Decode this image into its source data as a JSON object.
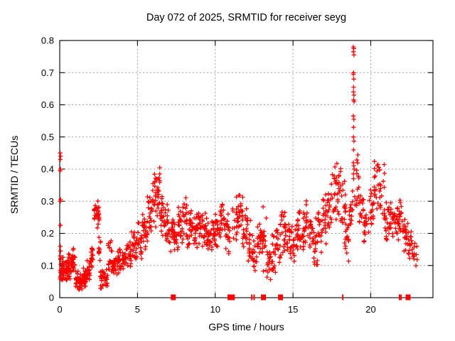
{
  "chart_data": {
    "type": "scatter",
    "title": "Day 072 of 2025, SRMTID for receiver seyg",
    "xlabel": "GPS time / hours",
    "ylabel": "SRMTID / TECUs",
    "series_name": "SRMTID",
    "xlim": [
      0,
      24
    ],
    "ylim": [
      0,
      0.8
    ],
    "xticks": [
      {
        "v": 0,
        "label": "0"
      },
      {
        "v": 5,
        "label": "5"
      },
      {
        "v": 10,
        "label": "10"
      },
      {
        "v": 15,
        "label": "15"
      },
      {
        "v": 20,
        "label": "20"
      }
    ],
    "yticks": [
      {
        "v": 0,
        "label": "0"
      },
      {
        "v": 0.1,
        "label": "0.1"
      },
      {
        "v": 0.2,
        "label": "0.2"
      },
      {
        "v": 0.3,
        "label": "0.3"
      },
      {
        "v": 0.4,
        "label": "0.4"
      },
      {
        "v": 0.5,
        "label": "0.5"
      },
      {
        "v": 0.6,
        "label": "0.6"
      },
      {
        "v": 0.7,
        "label": "0.7"
      },
      {
        "v": 0.8,
        "label": "0.8"
      }
    ],
    "grid": true,
    "legend_visible": false,
    "marker": "plus",
    "marker_color": "#ff0000",
    "grid_color": "#9e9e9e",
    "border_color": "#000000",
    "seed": 72,
    "density_bins": [
      [
        0.02,
        0.25,
        0.04,
        0.13,
        26
      ],
      [
        0.25,
        0.5,
        0.04,
        0.12,
        24
      ],
      [
        0.5,
        0.75,
        0.05,
        0.14,
        24
      ],
      [
        0.75,
        1.0,
        0.06,
        0.16,
        22
      ],
      [
        1.0,
        1.25,
        0.02,
        0.09,
        26
      ],
      [
        1.25,
        1.5,
        0.015,
        0.08,
        26
      ],
      [
        1.5,
        1.75,
        0.03,
        0.1,
        24
      ],
      [
        1.75,
        2.0,
        0.05,
        0.12,
        22
      ],
      [
        2.0,
        2.2,
        0.08,
        0.18,
        14
      ],
      [
        2.2,
        2.55,
        0.2,
        0.31,
        32
      ],
      [
        2.45,
        2.65,
        0.1,
        0.22,
        10
      ],
      [
        2.6,
        3.1,
        0.025,
        0.09,
        36
      ],
      [
        3.1,
        3.4,
        0.05,
        0.2,
        20
      ],
      [
        3.4,
        3.7,
        0.06,
        0.15,
        22
      ],
      [
        3.7,
        4.0,
        0.07,
        0.16,
        22
      ],
      [
        4.0,
        4.3,
        0.08,
        0.17,
        20
      ],
      [
        4.3,
        4.6,
        0.09,
        0.19,
        20
      ],
      [
        4.6,
        5.0,
        0.11,
        0.21,
        24
      ],
      [
        5.0,
        5.3,
        0.12,
        0.24,
        20
      ],
      [
        5.3,
        5.6,
        0.14,
        0.28,
        20
      ],
      [
        5.6,
        5.9,
        0.17,
        0.33,
        22
      ],
      [
        5.9,
        6.2,
        0.2,
        0.4,
        22
      ],
      [
        6.2,
        6.45,
        0.24,
        0.42,
        20
      ],
      [
        6.45,
        6.7,
        0.19,
        0.36,
        18
      ],
      [
        6.7,
        7.0,
        0.16,
        0.3,
        20
      ],
      [
        7.0,
        7.3,
        0.14,
        0.27,
        20
      ],
      [
        7.3,
        7.6,
        0.13,
        0.25,
        20
      ],
      [
        7.6,
        7.9,
        0.14,
        0.3,
        20
      ],
      [
        7.9,
        8.2,
        0.16,
        0.34,
        20
      ],
      [
        8.2,
        8.5,
        0.14,
        0.28,
        20
      ],
      [
        8.5,
        8.8,
        0.13,
        0.26,
        20
      ],
      [
        8.8,
        9.1,
        0.14,
        0.3,
        20
      ],
      [
        9.1,
        9.4,
        0.14,
        0.27,
        20
      ],
      [
        9.4,
        9.7,
        0.13,
        0.25,
        20
      ],
      [
        9.7,
        10.0,
        0.13,
        0.26,
        20
      ],
      [
        10.0,
        10.3,
        0.14,
        0.28,
        20
      ],
      [
        10.3,
        10.6,
        0.16,
        0.33,
        20
      ],
      [
        10.6,
        10.85,
        0.14,
        0.27,
        16
      ],
      [
        10.85,
        10.95,
        0.13,
        0.24,
        6
      ],
      [
        11.1,
        11.5,
        0.15,
        0.33,
        22
      ],
      [
        11.5,
        11.8,
        0.16,
        0.37,
        20
      ],
      [
        11.8,
        12.1,
        0.14,
        0.3,
        18
      ],
      [
        12.1,
        12.4,
        0.08,
        0.25,
        18
      ],
      [
        12.4,
        12.7,
        0.07,
        0.22,
        16
      ],
      [
        12.7,
        13.0,
        0.09,
        0.26,
        18
      ],
      [
        13.0,
        13.3,
        0.05,
        0.29,
        20
      ],
      [
        13.3,
        13.6,
        0.04,
        0.18,
        18
      ],
      [
        13.6,
        13.9,
        0.07,
        0.22,
        18
      ],
      [
        13.9,
        14.2,
        0.09,
        0.26,
        18
      ],
      [
        14.2,
        14.5,
        0.11,
        0.31,
        18
      ],
      [
        14.5,
        14.8,
        0.11,
        0.26,
        18
      ],
      [
        14.8,
        15.1,
        0.1,
        0.23,
        18
      ],
      [
        15.1,
        15.4,
        0.12,
        0.27,
        18
      ],
      [
        15.4,
        15.7,
        0.14,
        0.29,
        18
      ],
      [
        15.7,
        16.0,
        0.14,
        0.31,
        18
      ],
      [
        16.0,
        16.3,
        0.13,
        0.28,
        18
      ],
      [
        16.3,
        16.6,
        0.08,
        0.26,
        18
      ],
      [
        16.6,
        16.9,
        0.13,
        0.3,
        18
      ],
      [
        16.9,
        17.2,
        0.15,
        0.33,
        18
      ],
      [
        17.2,
        17.5,
        0.18,
        0.38,
        18
      ],
      [
        17.5,
        17.8,
        0.2,
        0.42,
        18
      ],
      [
        17.8,
        18.1,
        0.22,
        0.45,
        18
      ],
      [
        18.1,
        18.4,
        0.15,
        0.4,
        16
      ],
      [
        18.3,
        18.6,
        0.09,
        0.28,
        16
      ],
      [
        18.6,
        18.85,
        0.17,
        0.36,
        14
      ],
      [
        18.95,
        19.25,
        0.24,
        0.45,
        16
      ],
      [
        19.25,
        19.55,
        0.2,
        0.35,
        16
      ],
      [
        19.55,
        19.9,
        0.15,
        0.3,
        18
      ],
      [
        19.9,
        20.2,
        0.2,
        0.36,
        18
      ],
      [
        20.2,
        20.55,
        0.24,
        0.45,
        18
      ],
      [
        20.55,
        20.9,
        0.22,
        0.44,
        18
      ],
      [
        20.9,
        21.2,
        0.16,
        0.3,
        18
      ],
      [
        21.2,
        21.5,
        0.16,
        0.32,
        18
      ],
      [
        21.5,
        21.8,
        0.15,
        0.3,
        18
      ],
      [
        21.8,
        22.1,
        0.14,
        0.33,
        18
      ],
      [
        22.1,
        22.4,
        0.12,
        0.27,
        18
      ],
      [
        22.4,
        22.7,
        0.1,
        0.22,
        16
      ],
      [
        22.7,
        23.0,
        0.09,
        0.18,
        10
      ]
    ],
    "outlier_points": [
      [
        0.03,
        0.45
      ],
      [
        0.06,
        0.44
      ],
      [
        0.04,
        0.43
      ],
      [
        0.05,
        0.4
      ],
      [
        0.03,
        0.395
      ],
      [
        0.06,
        0.305
      ],
      [
        0.04,
        0.3
      ],
      [
        0.05,
        0.225
      ],
      [
        0.04,
        0.16
      ],
      [
        0.06,
        0.145
      ],
      [
        0.03,
        0.13
      ]
    ],
    "spike_points": [
      [
        18.88,
        0.78
      ],
      [
        18.91,
        0.775
      ],
      [
        18.89,
        0.765
      ],
      [
        18.92,
        0.755
      ],
      [
        18.9,
        0.7
      ],
      [
        18.88,
        0.695
      ],
      [
        18.91,
        0.68
      ],
      [
        18.9,
        0.655
      ],
      [
        18.89,
        0.64
      ],
      [
        18.92,
        0.63
      ],
      [
        18.9,
        0.615
      ],
      [
        18.93,
        0.61
      ],
      [
        18.88,
        0.565
      ],
      [
        18.91,
        0.555
      ],
      [
        18.9,
        0.53
      ],
      [
        18.89,
        0.5
      ],
      [
        18.92,
        0.487
      ],
      [
        18.9,
        0.46
      ],
      [
        18.88,
        0.42
      ],
      [
        18.91,
        0.41
      ],
      [
        18.93,
        0.4
      ],
      [
        18.89,
        0.385
      ],
      [
        18.9,
        0.37
      ]
    ],
    "baseline_squares": [
      7.3,
      10.95,
      11.1,
      13.1,
      14.2,
      22.4
    ],
    "baseline_thin_ticks": [
      12.35,
      12.5,
      18.2,
      21.85,
      21.95
    ]
  }
}
